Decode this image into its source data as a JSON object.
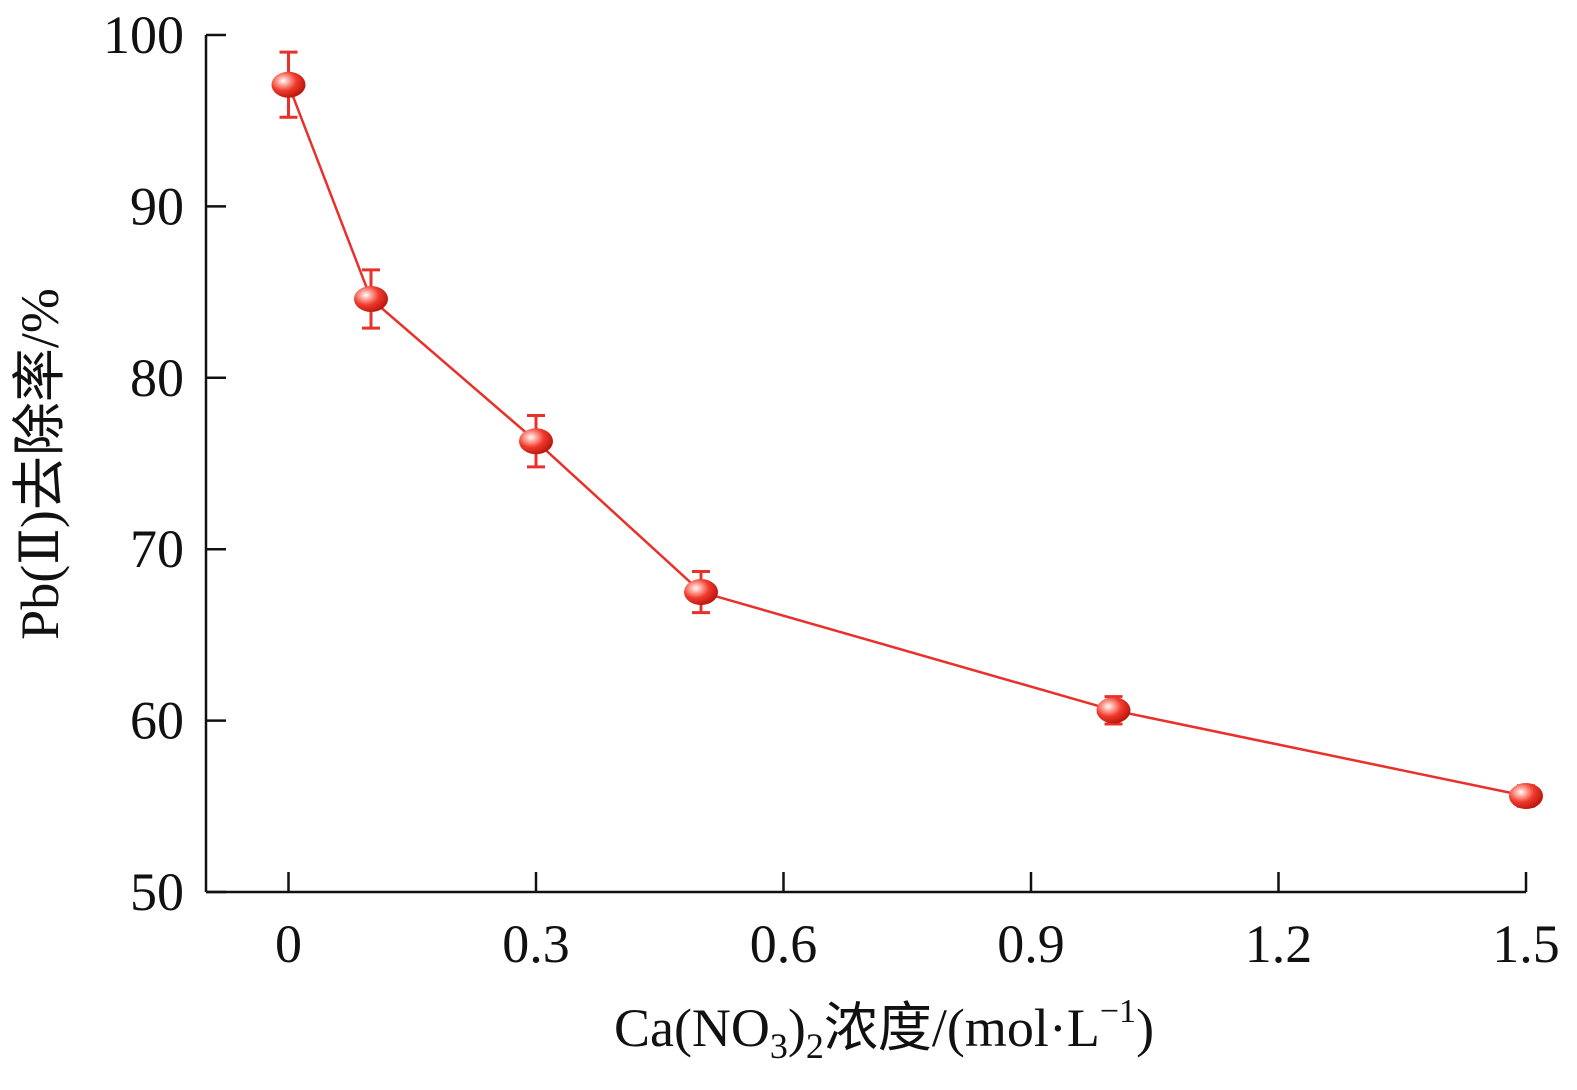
{
  "chart_data": {
    "type": "line",
    "xlabel": "Ca(NO3)2浓度/(mol·L−1)",
    "xlabel_parts": {
      "a": "Ca(NO",
      "sub1": "3",
      "b": ")",
      "sub2": "2",
      "c": "浓度/(mol·L",
      "sup": "−1",
      "d": ")"
    },
    "ylabel": "Pb(Ⅱ)去除率/%",
    "xlim": [
      -0.1,
      1.5
    ],
    "ylim": [
      50,
      100
    ],
    "xticks": [
      0,
      0.3,
      0.6,
      0.9,
      1.2,
      1.5
    ],
    "xtick_labels": [
      "0",
      "0.3",
      "0.6",
      "0.9",
      "1.2",
      "1.5"
    ],
    "yticks": [
      50,
      60,
      70,
      80,
      90,
      100
    ],
    "ytick_labels": [
      "50",
      "60",
      "70",
      "80",
      "90",
      "100"
    ],
    "grid": false,
    "series": [
      {
        "color": "#e8312a",
        "x": [
          0,
          0.1,
          0.3,
          0.5,
          1.0,
          1.5
        ],
        "y": [
          97.1,
          84.6,
          76.3,
          67.5,
          60.6,
          55.6
        ],
        "error": [
          1.9,
          1.7,
          1.5,
          1.2,
          0.8,
          0.6
        ]
      }
    ]
  }
}
